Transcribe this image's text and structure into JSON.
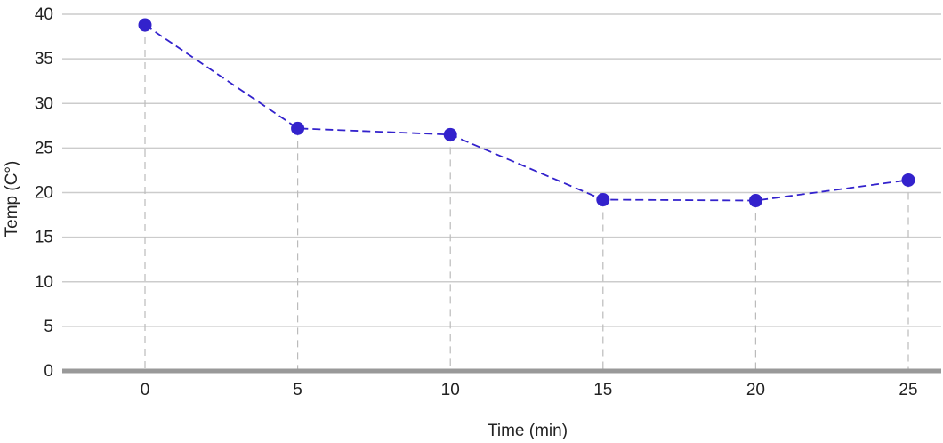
{
  "chart_data": {
    "type": "line",
    "title": "",
    "xlabel": "Time (min)",
    "ylabel": "Temp (C°)",
    "x": [
      0,
      5,
      10,
      15,
      20,
      25
    ],
    "x_tick_labels": [
      "0",
      "5",
      "10",
      "15",
      "20",
      "25"
    ],
    "y_tick_values": [
      0,
      5,
      10,
      15,
      20,
      25,
      30,
      35,
      40
    ],
    "y_tick_labels": [
      "0",
      "5",
      "10",
      "15",
      "20",
      "25",
      "30",
      "35",
      "40"
    ],
    "ylim": [
      0,
      40
    ],
    "grid": "horizontal",
    "series": [
      {
        "values": [
          38.8,
          27.2,
          26.5,
          19.2,
          19.1,
          21.4
        ],
        "color": "#3322cc",
        "line_style": "dashed",
        "marker": "circle"
      }
    ],
    "colors": {
      "gridline": "#cccccc",
      "baseline": "#999999",
      "dropline": "#bbbbbb"
    }
  }
}
